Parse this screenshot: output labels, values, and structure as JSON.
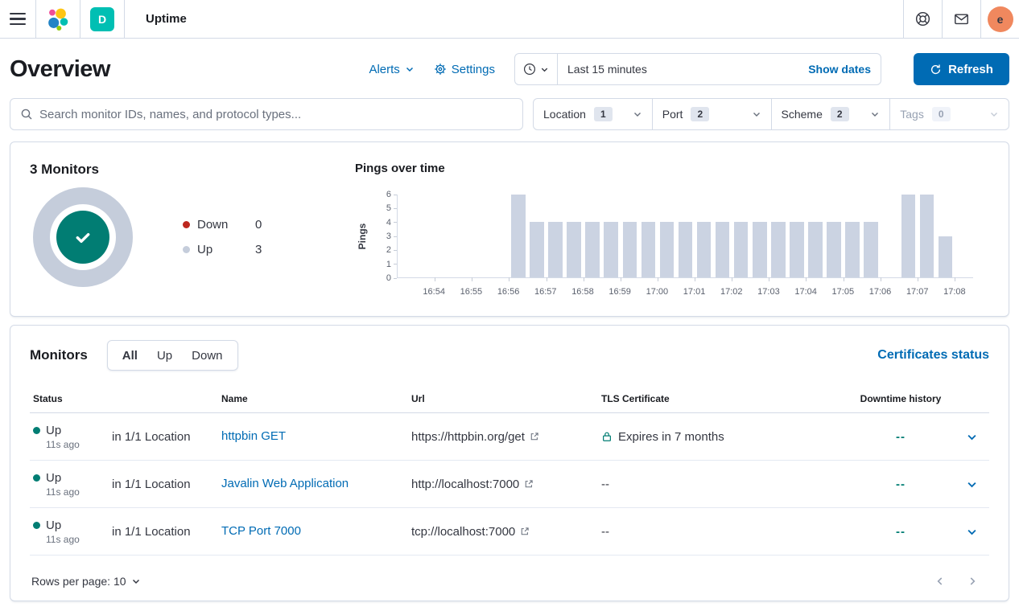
{
  "header": {
    "app_title": "Uptime",
    "space_initial": "D",
    "avatar_initial": "e"
  },
  "page": {
    "title": "Overview",
    "alerts_label": "Alerts",
    "settings_label": "Settings",
    "time_range": "Last 15 minutes",
    "show_dates_label": "Show dates",
    "refresh_label": "Refresh",
    "search_placeholder": "Search monitor IDs, names, and protocol types...",
    "filters": [
      {
        "label": "Location",
        "count": "1",
        "disabled": false
      },
      {
        "label": "Port",
        "count": "2",
        "disabled": false
      },
      {
        "label": "Scheme",
        "count": "2",
        "disabled": false
      },
      {
        "label": "Tags",
        "count": "0",
        "disabled": true
      }
    ]
  },
  "snapshot": {
    "title": "3 Monitors",
    "legend": [
      {
        "label": "Down",
        "value": "0",
        "color": "#BD271E"
      },
      {
        "label": "Up",
        "value": "3",
        "color": "#C5CDDB"
      }
    ]
  },
  "chart_data": {
    "type": "bar",
    "title": "Pings over time",
    "ylabel": "Pings",
    "xlabel": "",
    "ylim": [
      0,
      6
    ],
    "y_ticks": [
      0,
      1,
      2,
      3,
      4,
      5,
      6
    ],
    "bucket_seconds": 30,
    "x_start": "16:53:00",
    "values": [
      0,
      0,
      0,
      0,
      0,
      0,
      6,
      4,
      4,
      4,
      4,
      4,
      4,
      4,
      4,
      4,
      4,
      4,
      4,
      4,
      4,
      4,
      4,
      4,
      4,
      4,
      0,
      6,
      6,
      3,
      0
    ],
    "x_ticks": [
      {
        "label": "16:54",
        "bucket": 2
      },
      {
        "label": "16:55",
        "bucket": 4
      },
      {
        "label": "16:56",
        "bucket": 6
      },
      {
        "label": "16:57",
        "bucket": 8
      },
      {
        "label": "16:58",
        "bucket": 10
      },
      {
        "label": "16:59",
        "bucket": 12
      },
      {
        "label": "17:00",
        "bucket": 14
      },
      {
        "label": "17:01",
        "bucket": 16
      },
      {
        "label": "17:02",
        "bucket": 18
      },
      {
        "label": "17:03",
        "bucket": 20
      },
      {
        "label": "17:04",
        "bucket": 22
      },
      {
        "label": "17:05",
        "bucket": 24
      },
      {
        "label": "17:06",
        "bucket": 26
      },
      {
        "label": "17:07",
        "bucket": 28
      },
      {
        "label": "17:08",
        "bucket": 30
      }
    ],
    "grid": false,
    "legend_position": "none"
  },
  "monitors": {
    "title": "Monitors",
    "tabs": [
      {
        "label": "All"
      },
      {
        "label": "Up"
      },
      {
        "label": "Down"
      }
    ],
    "selected_tab": "All",
    "certificates_link": "Certificates status",
    "columns": {
      "status": "Status",
      "name": "Name",
      "url": "Url",
      "tls": "TLS Certificate",
      "downtime": "Downtime history"
    },
    "rows": [
      {
        "status": "Up",
        "ago": "11s ago",
        "location": "in 1/1 Location",
        "name": "httpbin GET",
        "url": "https://httpbin.org/get",
        "tls": "Expires in 7 months",
        "downtime": "--"
      },
      {
        "status": "Up",
        "ago": "11s ago",
        "location": "in 1/1 Location",
        "name": "Javalin Web Application",
        "url": "http://localhost:7000",
        "tls": "--",
        "downtime": "--"
      },
      {
        "status": "Up",
        "ago": "11s ago",
        "location": "in 1/1 Location",
        "name": "TCP Port 7000",
        "url": "tcp://localhost:7000",
        "tls": "--",
        "downtime": "--"
      }
    ],
    "rows_per_page_label": "Rows per page: 10"
  },
  "colors": {
    "primary": "#006BB4",
    "success": "#017D73",
    "danger": "#BD271E",
    "bar_fill": "#CBD3E2",
    "donut_ring": "#C5CDDB",
    "avatar_bg": "#F0885E",
    "space_badge": "#00BFB3"
  }
}
